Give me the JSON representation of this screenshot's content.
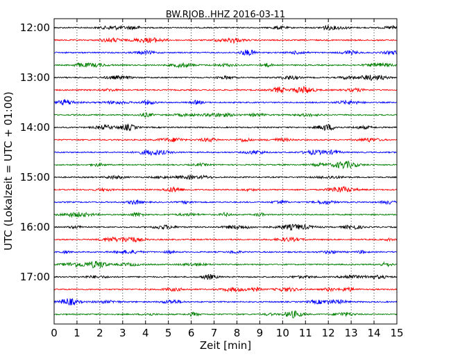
{
  "chart_data": {
    "type": "line",
    "title": "BW.RJOB..HHZ 2016-03-11",
    "xlabel": "Zeit  [min]",
    "ylabel": "UTC (Lokalzeit = UTC + 01:00)",
    "xlim": [
      0,
      15
    ],
    "x_ticks": [
      0,
      1,
      2,
      3,
      4,
      5,
      6,
      7,
      8,
      9,
      10,
      11,
      12,
      13,
      14,
      15
    ],
    "grid": "vertical dotted",
    "trace_interval_minutes": 15,
    "start_time": "12:00",
    "y_tick_labels": [
      "12:00",
      "13:00",
      "14:00",
      "15:00",
      "16:00",
      "17:00"
    ],
    "trace_count": 24,
    "trace_colors": [
      "#000000",
      "#ff0000",
      "#0000ff",
      "#008000"
    ]
  }
}
